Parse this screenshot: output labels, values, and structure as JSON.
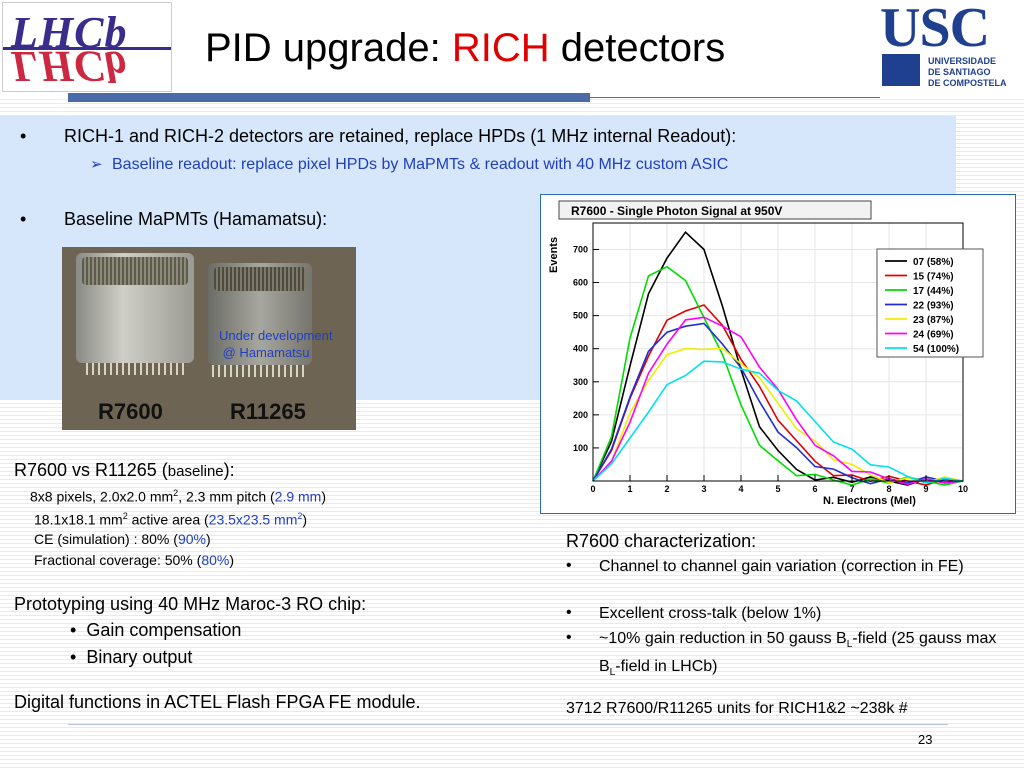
{
  "title": {
    "prefix": "PID upgrade: ",
    "accent": "RICH",
    "suffix": " detectors"
  },
  "logos": {
    "lhcb": "LHCb",
    "usc": "USC",
    "usc_sub": [
      "UNIVERSIDADE",
      "DE SANTIAGO",
      "DE COMPOSTELA"
    ]
  },
  "bullets": {
    "b1": "RICH-1 and RICH-2 detectors are retained, replace HPDs (1 MHz internal Readout):",
    "b1a": "Baseline readout: replace pixel HPDs by MaPMTs & readout with 40 MHz custom ASIC",
    "b2": "Baseline MaPMTs (Hamamatsu):"
  },
  "photo": {
    "label_left": "R7600",
    "label_right": "R11265",
    "note_line1": "Under development",
    "note_line2": "@ Hamamatsu"
  },
  "specs": {
    "title": "R7600 vs R11265 (",
    "title_small": "baseline",
    "title_end": "):",
    "pixels_a": "8x8 pixels, 2.0x2.0 mm",
    "pixels_b": ", 2.3 mm pitch (",
    "pixels_c": "2.9 mm",
    "area_a": "18.1x18.1 mm",
    "area_b": " active area (",
    "area_c": "23.5x23.5 mm",
    "ce_a": "CE (simulation) : 80% (",
    "ce_b": "90%",
    "cov_a": "Fractional coverage: 50% (",
    "cov_b": "80%",
    "close": ")",
    "sup2": "2"
  },
  "prototyping": {
    "title": "Prototyping using 40 MHz Maroc-3 RO chip:",
    "items": [
      "Gain compensation",
      "Binary output"
    ]
  },
  "digital": "Digital functions in ACTEL Flash FPGA FE module.",
  "characterization": {
    "title": "R7600 characterization:",
    "item1": "Channel to channel gain variation (correction in FE)",
    "item2": "Excellent cross-talk (below 1%)",
    "item3_a": " ~10% gain reduction in 50 gauss  B",
    "item3_b": "-field (25 gauss max B",
    "item3_c": "-field in LHCb)",
    "sub_l": "L",
    "units": "3712 R7600/R11265  units for RICH1&2 ~238k #"
  },
  "bullet_char": "•",
  "arrow_char": "➢",
  "page_number": "23",
  "chart_data": {
    "type": "line",
    "title": "R7600 - Single Photon Signal at 950V",
    "xlabel": "N. Electrons (Mel)",
    "ylabel": "Events",
    "xlim": [
      0,
      10
    ],
    "ylim": [
      0,
      780
    ],
    "x_ticks": [
      0,
      1,
      2,
      3,
      4,
      5,
      6,
      7,
      8,
      9,
      10
    ],
    "y_ticks": [
      100,
      200,
      300,
      400,
      500,
      600,
      700
    ],
    "legend_position": "top-right",
    "x": [
      0,
      0.5,
      1,
      1.5,
      2,
      2.5,
      3,
      3.5,
      4,
      4.5,
      5,
      5.5,
      6,
      6.5,
      7,
      7.5,
      8,
      8.5,
      9,
      9.5,
      10
    ],
    "series": [
      {
        "name": "07 (58%)",
        "color": "#000000",
        "values": [
          0,
          120,
          360,
          560,
          680,
          740,
          700,
          540,
          330,
          170,
          80,
          35,
          15,
          5,
          2,
          0,
          0,
          0,
          0,
          0,
          0
        ]
      },
      {
        "name": "15 (74%)",
        "color": "#e00000",
        "values": [
          0,
          80,
          250,
          390,
          480,
          520,
          520,
          470,
          380,
          280,
          190,
          110,
          60,
          28,
          12,
          5,
          2,
          0,
          0,
          0,
          0
        ]
      },
      {
        "name": "17 (44%)",
        "color": "#00dd00",
        "values": [
          0,
          140,
          420,
          620,
          660,
          600,
          500,
          370,
          230,
          120,
          55,
          22,
          8,
          3,
          0,
          0,
          0,
          0,
          0,
          0,
          0
        ]
      },
      {
        "name": "22 (93%)",
        "color": "#1f2fd0",
        "values": [
          0,
          90,
          260,
          380,
          450,
          480,
          470,
          420,
          330,
          240,
          160,
          95,
          50,
          24,
          10,
          4,
          1,
          0,
          0,
          0,
          0
        ]
      },
      {
        "name": "23 (87%)",
        "color": "#eeee00",
        "values": [
          0,
          70,
          200,
          310,
          370,
          400,
          410,
          395,
          360,
          300,
          235,
          170,
          115,
          70,
          38,
          18,
          8,
          3,
          1,
          0,
          0
        ]
      },
      {
        "name": "24 (69%)",
        "color": "#ff00ff",
        "values": [
          0,
          60,
          190,
          320,
          420,
          475,
          495,
          480,
          430,
          350,
          265,
          185,
          120,
          70,
          35,
          15,
          6,
          2,
          0,
          0,
          0
        ]
      },
      {
        "name": "54 (100%)",
        "color": "#00e0f0",
        "values": [
          0,
          40,
          130,
          220,
          285,
          325,
          350,
          360,
          350,
          320,
          280,
          230,
          180,
          130,
          90,
          55,
          30,
          14,
          6,
          2,
          0
        ]
      }
    ]
  }
}
